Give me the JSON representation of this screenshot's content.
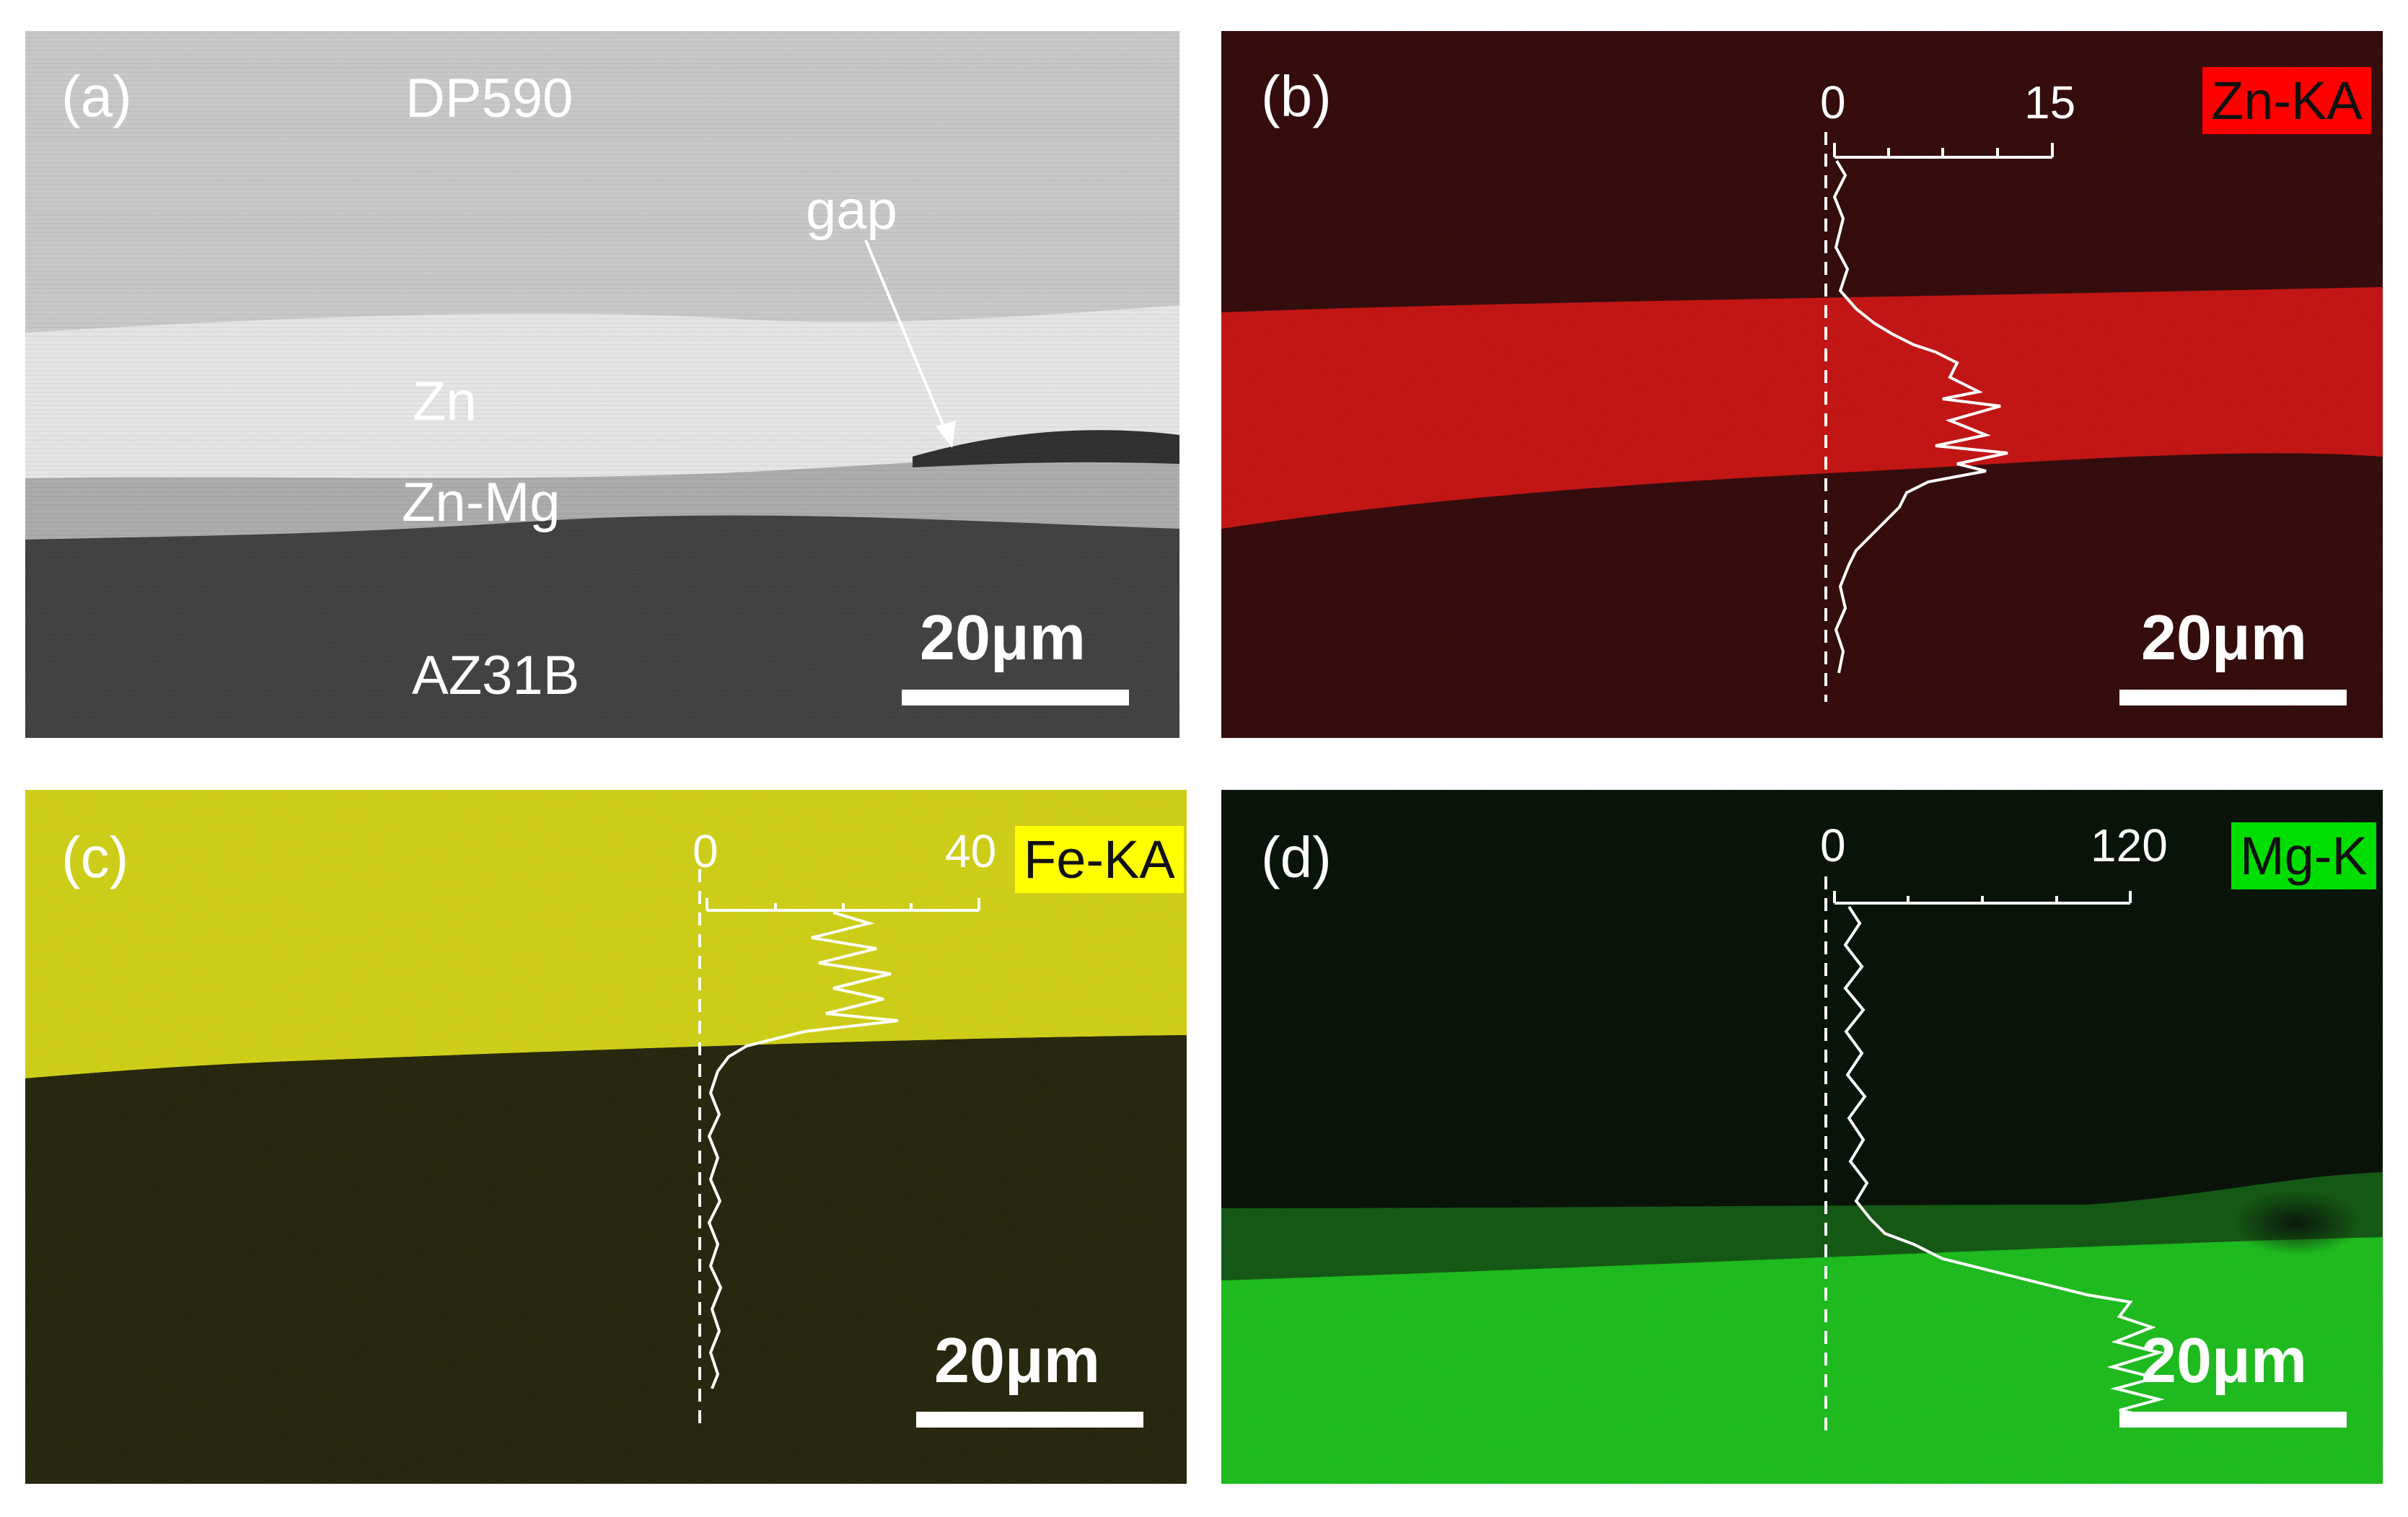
{
  "panels": {
    "a": {
      "label": "(a)",
      "regions": {
        "steel": "DP590",
        "zinc": "Zn",
        "interlayer": "Zn-Mg",
        "magnesium": "AZ31B"
      },
      "annotation": "gap",
      "scale": "20μm"
    },
    "b": {
      "label": "(b)",
      "element": "Zn-KA",
      "axis_min": "0",
      "axis_max": "15",
      "scale": "20μm",
      "map_color": "#e01010",
      "tag_color": "#ff0000"
    },
    "c": {
      "label": "(c)",
      "element": "Fe-KA",
      "axis_min": "0",
      "axis_max": "40",
      "scale": "20μm",
      "map_color": "#cfcf10",
      "tag_color": "#ffff00"
    },
    "d": {
      "label": "(d)",
      "element": "Mg-K",
      "axis_min": "0",
      "axis_max": "120",
      "scale": "20μm",
      "map_color": "#14c814",
      "tag_color": "#00dd00"
    }
  }
}
